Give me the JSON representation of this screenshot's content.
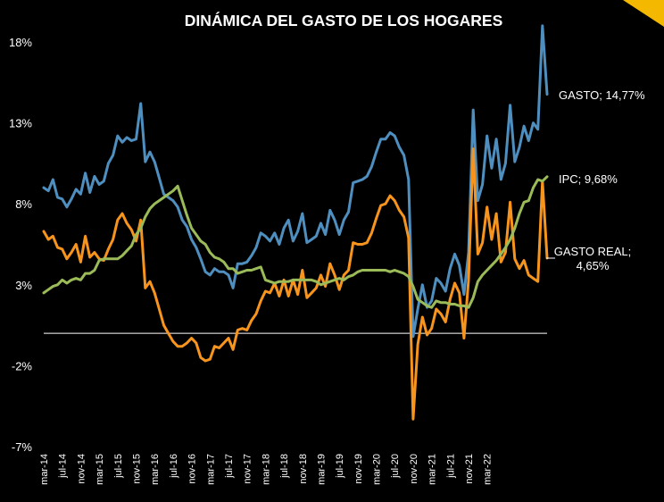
{
  "chart_data": {
    "type": "line",
    "title": "DINÁMICA DEL GASTO DE LOS HOGARES",
    "ylim": [
      -7,
      18
    ],
    "yticks": [
      18,
      13,
      8,
      3,
      -2,
      -7
    ],
    "ytick_labels": [
      "18%",
      "13%",
      "8%",
      "3%",
      "-2%",
      "-7%"
    ],
    "x_tick_labels": [
      "mar-14",
      "jul-14",
      "nov-14",
      "mar-15",
      "jul-15",
      "nov-15",
      "mar-16",
      "jul-16",
      "nov-16",
      "mar-17",
      "jul-17",
      "nov-17",
      "mar-18",
      "jul-18",
      "nov-18",
      "mar-19",
      "jul-19",
      "nov-19",
      "mar-20",
      "jul-20",
      "nov-20",
      "mar-21",
      "jul-21",
      "nov-21",
      "mar-22"
    ],
    "x_start": "mar-14",
    "x_end": "jul-22",
    "zero_line": 0,
    "grid": false,
    "series": [
      {
        "name": "GASTO",
        "label": "GASTO; 14,77%",
        "color": "#4F8FBF",
        "values": [
          9.0,
          8.8,
          9.5,
          8.4,
          8.3,
          7.8,
          8.3,
          8.9,
          8.6,
          9.9,
          8.7,
          9.7,
          9.2,
          9.4,
          10.5,
          11.0,
          12.2,
          11.8,
          12.1,
          11.9,
          12.0,
          14.2,
          10.6,
          11.2,
          10.6,
          9.6,
          8.6,
          8.4,
          8.2,
          7.8,
          7.0,
          6.6,
          5.8,
          5.3,
          4.6,
          3.8,
          3.6,
          4.0,
          3.8,
          3.8,
          3.6,
          2.8,
          4.3,
          4.3,
          4.4,
          4.8,
          5.3,
          6.2,
          6.0,
          5.7,
          6.2,
          5.5,
          6.5,
          7.0,
          5.7,
          6.3,
          7.4,
          5.6,
          5.8,
          6.0,
          6.8,
          6.1,
          7.6,
          7.0,
          6.1,
          7.0,
          7.5,
          9.3,
          9.4,
          9.5,
          9.7,
          10.3,
          11.2,
          12.0,
          12.0,
          12.4,
          12.2,
          11.5,
          11.0,
          9.5,
          -0.2,
          1.5,
          3.0,
          1.6,
          2.0,
          3.4,
          3.1,
          2.6,
          4.0,
          4.9,
          4.2,
          2.4,
          5.0,
          13.8,
          8.2,
          9.2,
          12.2,
          10.2,
          12.0,
          9.5,
          10.5,
          14.1,
          10.6,
          11.5,
          12.8,
          11.9,
          13.0,
          12.6,
          19.0,
          14.77
        ]
      },
      {
        "name": "IPC",
        "label": "IPC; 9,68%",
        "color": "#9BBB59",
        "values": [
          2.5,
          2.7,
          2.9,
          3.0,
          3.3,
          3.1,
          3.3,
          3.4,
          3.3,
          3.7,
          3.7,
          3.9,
          4.5,
          4.6,
          4.6,
          4.6,
          4.6,
          4.8,
          5.1,
          5.4,
          6.1,
          6.5,
          7.2,
          7.7,
          8.0,
          8.2,
          8.4,
          8.6,
          8.8,
          9.1,
          8.2,
          7.3,
          6.5,
          6.1,
          5.7,
          5.5,
          5.0,
          4.7,
          4.6,
          4.4,
          4.0,
          4.0,
          3.7,
          3.8,
          3.9,
          3.9,
          4.0,
          4.1,
          3.3,
          3.2,
          3.1,
          3.2,
          3.2,
          3.2,
          3.3,
          3.3,
          3.3,
          3.3,
          3.3,
          3.2,
          3.0,
          3.1,
          3.2,
          3.3,
          3.4,
          3.3,
          3.5,
          3.6,
          3.8,
          3.9,
          3.9,
          3.9,
          3.9,
          3.9,
          3.9,
          3.8,
          3.9,
          3.8,
          3.7,
          3.5,
          2.9,
          2.1,
          1.9,
          1.7,
          1.6,
          2.0,
          1.9,
          1.9,
          1.8,
          1.8,
          1.7,
          1.7,
          1.6,
          2.2,
          3.2,
          3.6,
          3.9,
          4.2,
          4.5,
          4.9,
          5.3,
          5.8,
          6.5,
          7.4,
          8.1,
          8.2,
          9.0,
          9.5,
          9.4,
          9.68
        ]
      },
      {
        "name": "GASTO REAL",
        "label": "GASTO REAL; 4,65%",
        "color": "#F7941D",
        "values": [
          6.3,
          5.8,
          6.0,
          5.3,
          5.2,
          4.6,
          5.0,
          5.5,
          4.4,
          6.0,
          4.7,
          5.0,
          4.6,
          4.5,
          5.2,
          5.8,
          7.0,
          7.4,
          6.8,
          6.4,
          5.7,
          7.0,
          2.8,
          3.2,
          2.5,
          1.5,
          0.5,
          0.0,
          -0.5,
          -0.8,
          -0.8,
          -0.6,
          -0.3,
          -0.6,
          -1.5,
          -1.7,
          -1.6,
          -0.8,
          -0.9,
          -0.6,
          -0.3,
          -1.0,
          0.2,
          0.3,
          0.2,
          0.8,
          1.2,
          2.0,
          2.6,
          2.5,
          3.1,
          2.3,
          3.3,
          2.3,
          3.3,
          2.4,
          3.9,
          2.2,
          2.5,
          2.8,
          3.6,
          2.9,
          4.3,
          3.6,
          2.7,
          3.6,
          3.9,
          5.6,
          5.5,
          5.5,
          5.6,
          6.2,
          7.1,
          7.9,
          8.0,
          8.5,
          8.2,
          7.6,
          7.2,
          5.9,
          -5.3,
          -0.7,
          1.0,
          -0.1,
          0.3,
          1.5,
          1.2,
          0.7,
          2.1,
          3.1,
          2.5,
          -0.3,
          3.3,
          11.4,
          4.9,
          5.6,
          7.8,
          5.8,
          7.4,
          4.4,
          5.0,
          8.1,
          4.6,
          4.0,
          4.5,
          3.6,
          3.4,
          3.2,
          9.4,
          4.65
        ]
      }
    ]
  }
}
